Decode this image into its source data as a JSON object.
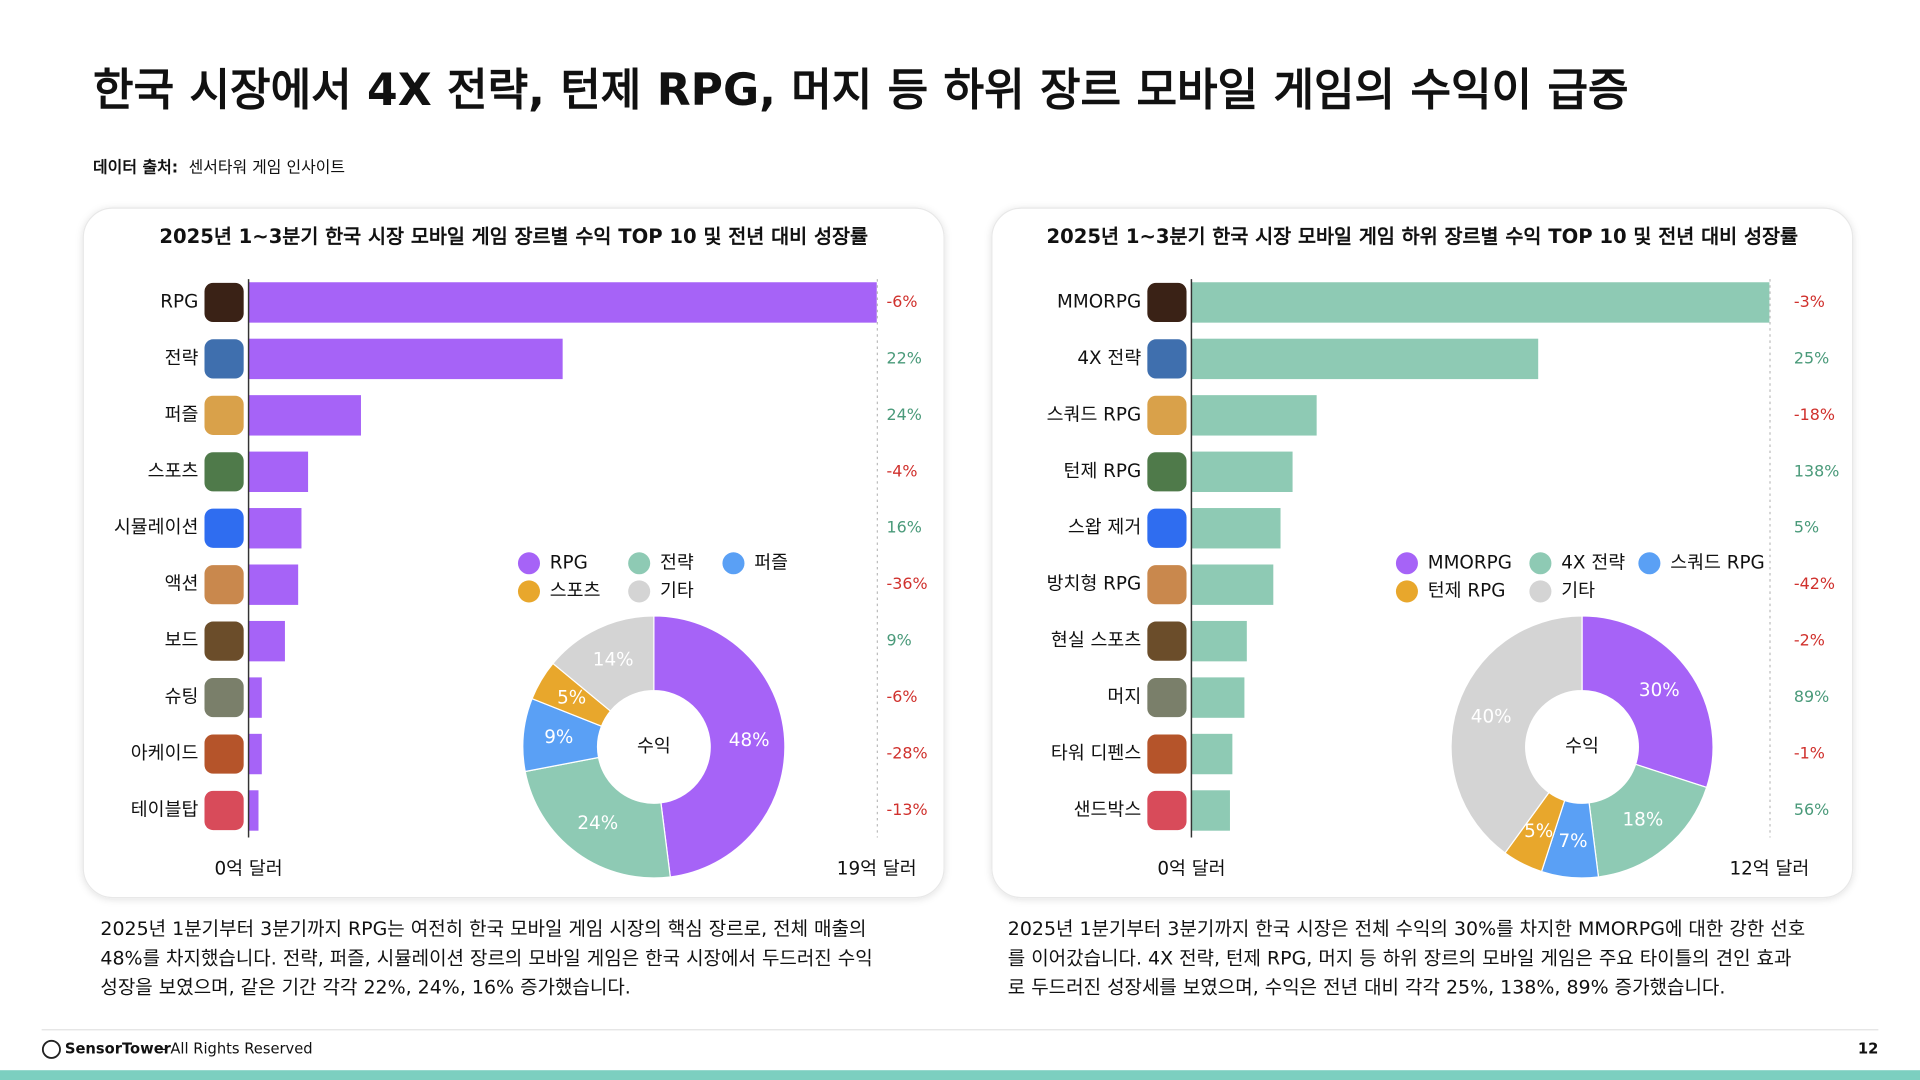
{
  "title": "한국 시장에서 4X 전략, 턴제 RPG, 머지 등 하위 장르 모바일 게임의 수익이 급증",
  "source_label": "데이터 출처:",
  "source": "센서타워 게임 인사이트",
  "chart_data": [
    {
      "type": "bar",
      "orientation": "horizontal",
      "title": "2025년 1~3분기 한국 시장 모바일 게임 장르별 수익 TOP 10 및 전년 대비 성장률",
      "categories": [
        "RPG",
        "전략",
        "퍼즐",
        "스포츠",
        "시뮬레이션",
        "액션",
        "보드",
        "슈팅",
        "아케이드",
        "테이블탑"
      ],
      "values": [
        19,
        9.5,
        3.4,
        1.8,
        1.6,
        1.5,
        1.1,
        0.4,
        0.4,
        0.3
      ],
      "color": "#a663f7",
      "xlim": [
        0,
        19
      ],
      "xticks": [
        {
          "value": 0,
          "label": "0억 달러"
        },
        {
          "value": 19,
          "label": "19억 달러"
        }
      ],
      "growth": {
        "values": [
          -6,
          22,
          24,
          -4,
          16,
          -36,
          9,
          -6,
          -28,
          -13
        ],
        "value_labels": [
          "-6%",
          "22%",
          "24%",
          "-4%",
          "16%",
          "-36%",
          "9%",
          "-6%",
          "-28%",
          "-13%"
        ],
        "positive_color": "#4a9a7a",
        "negative_color": "#d0312d"
      },
      "caption": [
        "2025년 1분기부터 3분기까지 RPG는 여전히 한국 모바일 게임 시장의 핵심 장르로, 전체 매출의",
        "48%를 차지했습니다. 전략, 퍼즐, 시뮬레이션 장르의 모바일 게임은 한국 시장에서 두드러진 수익",
        "성장을 보였으며, 같은 기간 각각 22%, 24%, 16% 증가했습니다."
      ]
    },
    {
      "type": "pie",
      "center_label": "수익",
      "categories": [
        "RPG",
        "전략",
        "퍼즐",
        "스포츠",
        "기타"
      ],
      "values": [
        48,
        24,
        9,
        5,
        14
      ],
      "value_labels": [
        "48%",
        "24%",
        "9%",
        "5%",
        "14%"
      ],
      "colors": [
        "#a663f7",
        "#8ecab4",
        "#5aa0f5",
        "#e8a72c",
        "#d4d4d4"
      ]
    },
    {
      "type": "bar",
      "orientation": "horizontal",
      "title": "2025년 1~3분기 한국 시장 모바일 게임 하위 장르별 수익 TOP 10 및 전년 대비 성장률",
      "categories": [
        "MMORPG",
        "4X 전략",
        "스쿼드 RPG",
        "턴제 RPG",
        "스왑 제거",
        "방치형 RPG",
        "현실 스포츠",
        "머지",
        "타워 디펜스",
        "샌드박스"
      ],
      "values": [
        12,
        7.2,
        2.6,
        2.1,
        1.85,
        1.7,
        1.15,
        1.1,
        0.85,
        0.8
      ],
      "color": "#8ecab4",
      "xlim": [
        0,
        12
      ],
      "xticks": [
        {
          "value": 0,
          "label": "0억 달러"
        },
        {
          "value": 12,
          "label": "12억 달러"
        }
      ],
      "growth": {
        "values": [
          -3,
          25,
          -18,
          138,
          5,
          -42,
          -2,
          89,
          -1,
          56
        ],
        "value_labels": [
          "-3%",
          "25%",
          "-18%",
          "138%",
          "5%",
          "-42%",
          "-2%",
          "89%",
          "-1%",
          "56%"
        ],
        "positive_color": "#4a9a7a",
        "negative_color": "#d0312d"
      },
      "caption": [
        "2025년 1분기부터 3분기까지 한국 시장은 전체 수익의 30%를 차지한 MMORPG에 대한 강한 선호",
        "를 이어갔습니다. 4X 전략, 턴제 RPG, 머지 등 하위 장르의 모바일 게임은 주요 타이틀의 견인 효과",
        "로 두드러진 성장세를 보였으며, 수익은 전년 대비 각각 25%, 138%, 89% 증가했습니다."
      ]
    },
    {
      "type": "pie",
      "center_label": "수익",
      "categories": [
        "MMORPG",
        "4X 전략",
        "스쿼드 RPG",
        "턴제 RPG",
        "기타"
      ],
      "values": [
        30,
        18,
        7,
        5,
        40
      ],
      "value_labels": [
        "30%",
        "18%",
        "7%",
        "5%",
        "40%"
      ],
      "colors": [
        "#a663f7",
        "#8ecab4",
        "#5aa0f5",
        "#e8a72c",
        "#d4d4d4"
      ]
    }
  ],
  "footer_brand": "SensorTower",
  "footer": "- All Rights Reserved",
  "page_number": "12"
}
